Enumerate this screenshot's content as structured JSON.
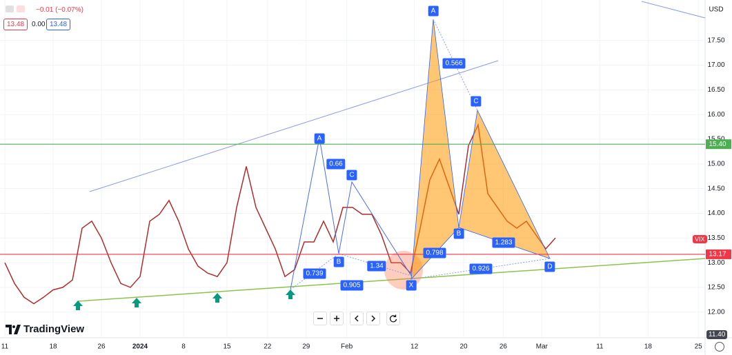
{
  "header": {
    "change": "−0.01 (−0.07%)",
    "bid": "13.48",
    "spread": "0.00",
    "ask": "13.48"
  },
  "currency": "USD",
  "symbol": "VIX",
  "low_label": "11.40",
  "brand": "TradingView",
  "chart_data": {
    "type": "line",
    "color": "#b22a2a",
    "x": [
      0,
      1,
      2,
      3,
      4,
      5,
      6,
      7,
      8,
      9,
      10,
      11,
      12,
      13,
      14,
      15,
      16,
      17,
      18,
      19,
      20,
      21,
      22,
      23,
      24,
      25,
      26,
      27,
      28,
      29,
      30,
      31,
      32,
      33,
      34,
      35,
      36,
      37,
      38,
      39,
      40,
      41,
      42,
      43,
      44,
      45,
      46,
      47,
      48,
      49,
      50,
      51,
      52,
      53,
      54,
      55,
      56,
      57
    ],
    "values": [
      13.0,
      12.58,
      12.3,
      12.17,
      12.3,
      12.45,
      12.5,
      12.65,
      13.7,
      13.84,
      13.5,
      13.0,
      12.58,
      12.5,
      12.72,
      13.84,
      13.98,
      14.26,
      13.84,
      13.28,
      12.93,
      12.79,
      12.72,
      13.0,
      14.12,
      14.95,
      14.12,
      13.7,
      13.28,
      12.72,
      12.86,
      13.42,
      13.42,
      13.84,
      13.42,
      14.12,
      14.12,
      13.98,
      13.98,
      13.56,
      13.0,
      13.0,
      12.79,
      13.7,
      14.68,
      15.1,
      14.54,
      13.98,
      15.37,
      15.79,
      14.4,
      14.12,
      13.84,
      13.7,
      13.84,
      13.56,
      13.28,
      13.5
    ],
    "xlim": [
      -0.5,
      72.5
    ],
    "xticks": [
      {
        "value": 0,
        "label": "11"
      },
      {
        "value": 5,
        "label": "18"
      },
      {
        "value": 10,
        "label": "26"
      },
      {
        "value": 14,
        "label": "2024"
      },
      {
        "value": 18.5,
        "label": "8"
      },
      {
        "value": 23,
        "label": "15"
      },
      {
        "value": 27.2,
        "label": "22"
      },
      {
        "value": 31.2,
        "label": "29"
      },
      {
        "value": 35.4,
        "label": "Feb"
      },
      {
        "value": 42.4,
        "label": "12"
      },
      {
        "value": 47.5,
        "label": "20"
      },
      {
        "value": 51.6,
        "label": "26"
      },
      {
        "value": 55.6,
        "label": "Mar"
      },
      {
        "value": 61.6,
        "label": "11"
      },
      {
        "value": 66.6,
        "label": "18"
      },
      {
        "value": 71.8,
        "label": "25"
      }
    ],
    "ylim": [
      11.48,
      18.32
    ],
    "yticks": [
      {
        "value": 12,
        "label": "12.00"
      },
      {
        "value": 12.5,
        "label": "12.50"
      },
      {
        "value": 13,
        "label": "13.00"
      },
      {
        "value": 13.5,
        "label": "13.50"
      },
      {
        "value": 14,
        "label": "14.00"
      },
      {
        "value": 14.5,
        "label": "14.50"
      },
      {
        "value": 15,
        "label": "15.00"
      },
      {
        "value": 15.5,
        "label": "15.50"
      },
      {
        "value": 16,
        "label": "16.00"
      },
      {
        "value": 16.5,
        "label": "16.50"
      },
      {
        "value": 17,
        "label": "17.00"
      },
      {
        "value": 17.5,
        "label": "17.50"
      }
    ],
    "horizontal_lines": [
      {
        "value": 15.4,
        "label": "15.40",
        "color": "#4caf50"
      },
      {
        "value": 13.17,
        "label": "13.17",
        "color": "#f23645"
      }
    ],
    "patterns": [
      {
        "points": [
          "A",
          "B",
          "C"
        ],
        "ratios": [
          "0.66",
          "0.739",
          "1.34",
          "0.905"
        ]
      },
      {
        "points": [
          "X",
          "A",
          "B",
          "C",
          "D"
        ],
        "ratios": [
          "0.566",
          "0.798",
          "1.283",
          "0.926"
        ]
      }
    ]
  }
}
